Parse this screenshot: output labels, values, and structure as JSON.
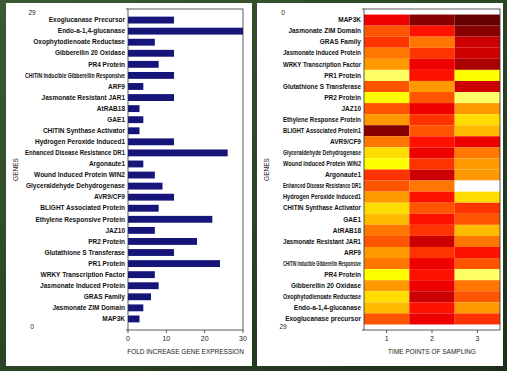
{
  "chart_data": [
    {
      "type": "bar",
      "orientation": "horizontal",
      "y_label": "GENES",
      "x_label": "FOLD INCREASE GENE EXPRESSION",
      "categories": [
        "Exoglucanase Precursor",
        "Endo-a-1,4-glucanase",
        "Oxophytodienoate Reductase",
        "Gibberellin 20 Oxidase",
        "PR4 Protein",
        "CHITIN Inducible Gibberellin Responsive",
        "ARF9",
        "Jasmonate Resistant JAR1",
        "AtRAB18",
        "GAE1",
        "CHITIN Synthase Activator",
        "Hydrogen Peroxide Induced1",
        "Enhanced Disease Resistance DR1",
        "Argonaute1",
        "Wound Induced Protein WIN2",
        "Glyceraldehyde Dehydrogenase",
        "AVR9/CF9",
        "BLIGHT Associated Protein",
        "Ethylene Responsive Protein",
        "JAZ10",
        "PR2 Protein",
        "Glutathione S Transferase",
        "PR1 Protein",
        "WRKY Transcription Factor",
        "Jasmonate Induced Protein",
        "GRAS Family",
        "Jasmonate ZIM Domain",
        "MAP3K"
      ],
      "values": [
        12,
        30,
        7,
        12,
        8,
        12,
        4,
        12,
        3,
        4,
        3,
        12,
        26,
        4,
        7,
        9,
        12,
        8,
        22,
        7,
        18,
        12,
        24,
        7,
        8,
        6,
        4,
        3
      ],
      "color": "#15157a",
      "xlim": [
        0,
        30
      ],
      "xticks": [
        0,
        10,
        20,
        30
      ],
      "ylim": [
        0,
        29
      ],
      "yticks": [
        0,
        29
      ]
    },
    {
      "type": "heatmap",
      "y_label": "GENES",
      "x_label": "TIME POINTS OF SAMPLING",
      "categories": [
        "MAP3K",
        "Jasmonate ZIM Domain",
        "GRAS Family",
        "Jasmonate Induced Protein",
        "WRKY Transcription Factor",
        "PR1 Protein",
        "Glutathione S Transferase",
        "PR2 Protein",
        "JAZ10",
        "Ethylene Response Protein",
        "BLIGHT Associated Protein1",
        "AVR9/CF9",
        "Glyceraldehyde Dehydrogenase",
        "Wound Induced Protein WIN2",
        "Argonaute1",
        "Enhanced Disease Resistance DR1",
        "Hydrogen Peroxide Induced1",
        "CHITIN Synthase Activator",
        "GAE1",
        "AtRAB18",
        "Jasmonate Resistant JAR1",
        "ARF9",
        "CHITIN Inducible Gibberellin Responsive",
        "PR4 Protein",
        "Gibberellin 20 Oxidase",
        "Oxophytodienoate Reductase",
        "Endo-a-1,4-glucanase",
        "Exoglucanase precursor"
      ],
      "x": [
        1,
        2,
        3
      ],
      "cells": [
        [
          0.35,
          0.2,
          0.15
        ],
        [
          0.5,
          0.4,
          0.2
        ],
        [
          0.45,
          0.55,
          0.3
        ],
        [
          0.55,
          0.45,
          0.3
        ],
        [
          0.6,
          0.35,
          0.25
        ],
        [
          0.85,
          0.4,
          0.75
        ],
        [
          0.5,
          0.6,
          0.3
        ],
        [
          0.75,
          0.5,
          0.85
        ],
        [
          0.5,
          0.35,
          0.6
        ],
        [
          0.6,
          0.45,
          0.7
        ],
        [
          0.2,
          0.5,
          0.65
        ],
        [
          0.55,
          0.4,
          0.35
        ],
        [
          0.7,
          0.35,
          0.55
        ],
        [
          0.75,
          0.45,
          0.6
        ],
        [
          0.45,
          0.3,
          0.6
        ],
        [
          0.5,
          0.55,
          1.0
        ],
        [
          0.6,
          0.4,
          0.7
        ],
        [
          0.7,
          0.5,
          0.45
        ],
        [
          0.65,
          0.4,
          0.5
        ],
        [
          0.55,
          0.45,
          0.65
        ],
        [
          0.5,
          0.3,
          0.55
        ],
        [
          0.6,
          0.45,
          0.4
        ],
        [
          0.55,
          0.35,
          0.5
        ],
        [
          0.75,
          0.4,
          0.85
        ],
        [
          0.6,
          0.35,
          0.55
        ],
        [
          0.7,
          0.3,
          0.5
        ],
        [
          0.65,
          0.4,
          0.6
        ],
        [
          0.5,
          0.35,
          0.45
        ]
      ],
      "zlim": [
        0,
        1
      ],
      "xlim": [
        0.5,
        3.5
      ],
      "xticks": [
        1,
        2,
        3
      ],
      "ylim": [
        0,
        29
      ],
      "yticks": [
        0,
        29
      ]
    }
  ]
}
